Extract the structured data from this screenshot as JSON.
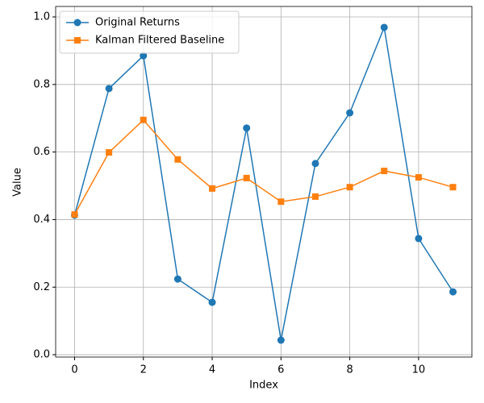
{
  "chart_data": {
    "type": "line",
    "x_label": "Index",
    "y_label": "Value",
    "x": [
      0,
      1,
      2,
      3,
      4,
      5,
      6,
      7,
      8,
      9,
      10,
      11
    ],
    "series": [
      {
        "name": "Original Returns",
        "color": "#1f77b4",
        "marker": "circle",
        "values": [
          0.413,
          0.788,
          0.885,
          0.224,
          0.155,
          0.671,
          0.043,
          0.566,
          0.716,
          0.969,
          0.344,
          0.186
        ]
      },
      {
        "name": "Kalman Filtered Baseline",
        "color": "#ff7f0e",
        "marker": "square",
        "values": [
          0.415,
          0.599,
          0.695,
          0.578,
          0.492,
          0.523,
          0.453,
          0.468,
          0.496,
          0.544,
          0.525,
          0.496
        ]
      }
    ],
    "xlim": [
      -0.55,
      11.55
    ],
    "ylim": [
      -0.007,
      1.031
    ],
    "xticks": [
      0,
      2,
      4,
      6,
      8,
      10
    ],
    "yticks": [
      {
        "value": 0,
        "label": "0.0"
      },
      0.2,
      0.4,
      0.6,
      0.8,
      {
        "value": 1,
        "label": "1.0"
      }
    ],
    "grid": true,
    "legend": "upper-left"
  }
}
